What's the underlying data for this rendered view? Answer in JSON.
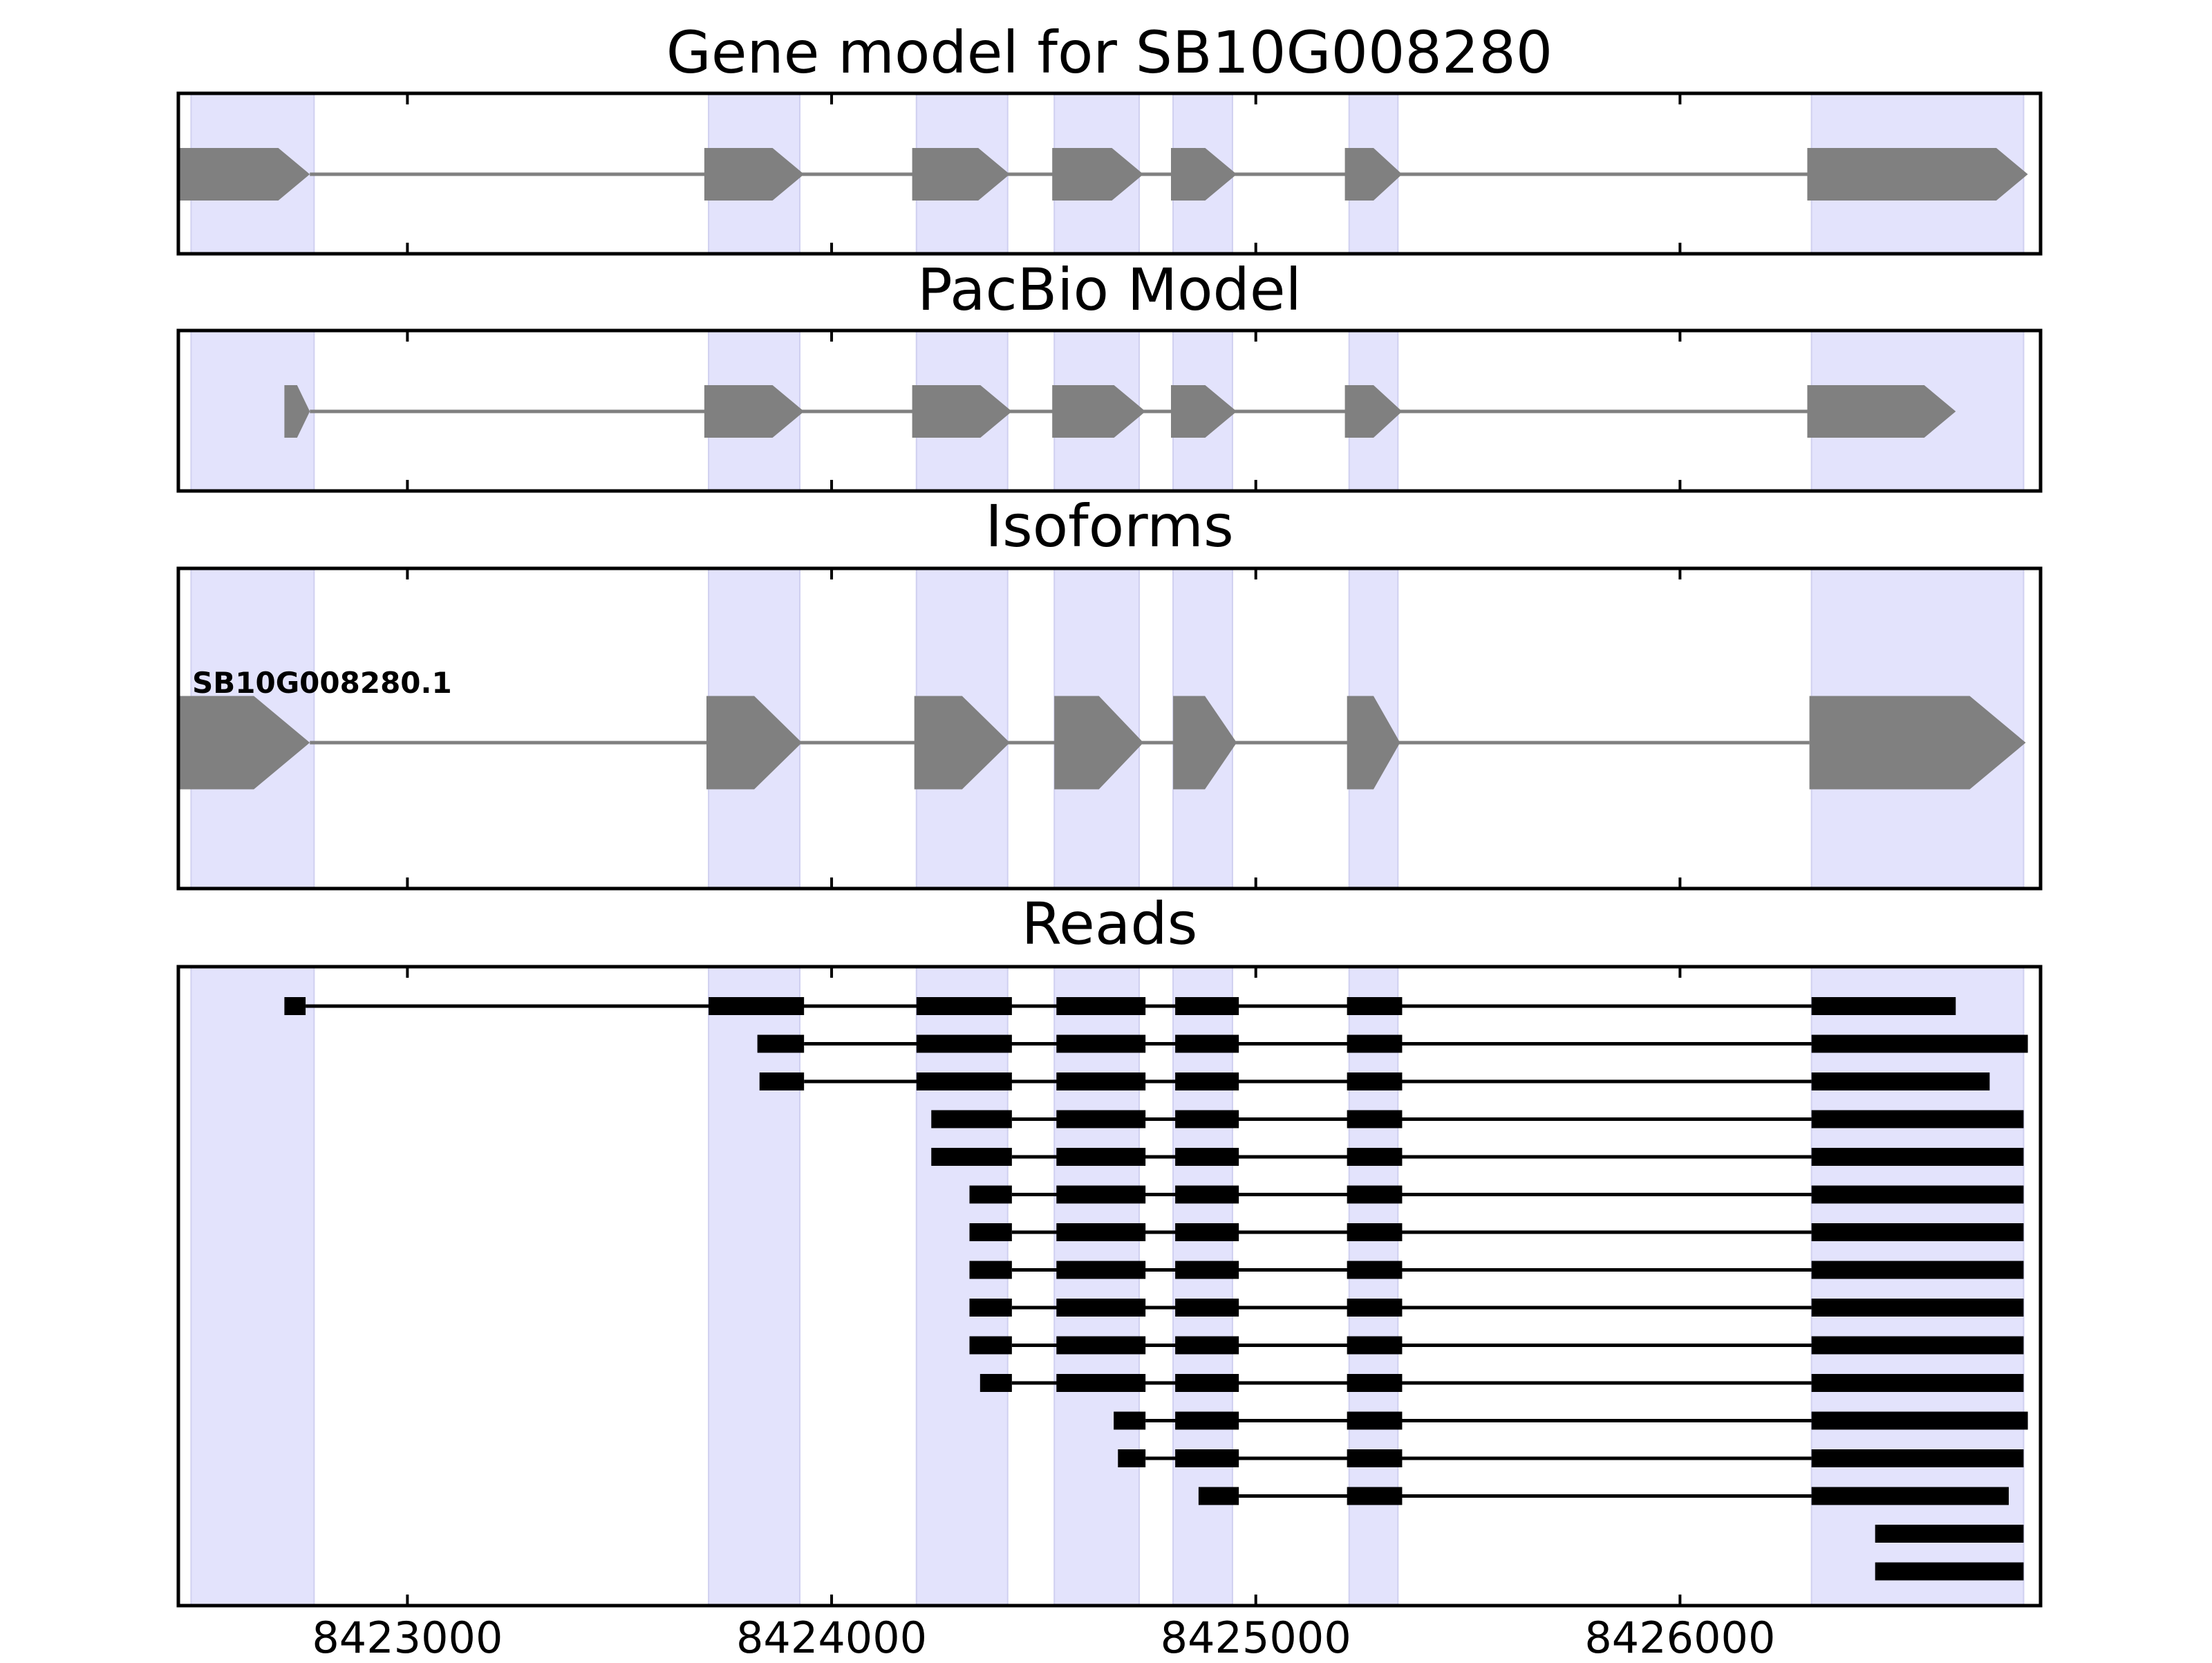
{
  "chart_data": {
    "type": "gene-track",
    "xlim": [
      8422460,
      8426850
    ],
    "x_ticks": [
      8423000,
      8424000,
      8425000,
      8426000
    ],
    "x_tick_labels": [
      "8423000",
      "8424000",
      "8425000",
      "8426000"
    ],
    "highlight_color": "#e3e3fc",
    "feature_color": "#808080",
    "read_color": "#000000",
    "exon_regions": [
      [
        8422490,
        8422780
      ],
      [
        8423710,
        8423925
      ],
      [
        8424200,
        8424415
      ],
      [
        8424525,
        8424725
      ],
      [
        8424805,
        8424945
      ],
      [
        8425220,
        8425335
      ],
      [
        8426310,
        8426810
      ]
    ],
    "panels": [
      {
        "title": "Gene model for SB10G008280",
        "kind": "model",
        "exons": [
          [
            8422460,
            8422770
          ],
          [
            8423700,
            8423935
          ],
          [
            8424190,
            8424420
          ],
          [
            8424520,
            8424735
          ],
          [
            8424800,
            8424955
          ],
          [
            8425210,
            8425345
          ],
          [
            8426300,
            8426820
          ]
        ]
      },
      {
        "title": "PacBio Model",
        "kind": "model",
        "exons": [
          [
            8422710,
            8422770
          ],
          [
            8423700,
            8423935
          ],
          [
            8424190,
            8424425
          ],
          [
            8424520,
            8424740
          ],
          [
            8424800,
            8424955
          ],
          [
            8425210,
            8425345
          ],
          [
            8426300,
            8426650
          ]
        ]
      },
      {
        "title": "Isoforms",
        "kind": "isoforms",
        "isoforms": [
          {
            "name": "SB10G008280.1",
            "exons": [
              [
                8422460,
                8422770
              ],
              [
                8423705,
                8423930
              ],
              [
                8424195,
                8424420
              ],
              [
                8424525,
                8424735
              ],
              [
                8424805,
                8424955
              ],
              [
                8425215,
                8425340
              ],
              [
                8426305,
                8426815
              ]
            ]
          }
        ]
      },
      {
        "title": "Reads",
        "kind": "reads",
        "reads": [
          [
            [
              8422710,
              8422760
            ],
            [
              8423710,
              8423935
            ],
            [
              8424200,
              8424425
            ],
            [
              8424530,
              8424740
            ],
            [
              8424810,
              8424960
            ],
            [
              8425215,
              8425345
            ],
            [
              8426310,
              8426650
            ]
          ],
          [
            [
              8423825,
              8423935
            ],
            [
              8424200,
              8424425
            ],
            [
              8424530,
              8424740
            ],
            [
              8424810,
              8424960
            ],
            [
              8425215,
              8425345
            ],
            [
              8426310,
              8426820
            ]
          ],
          [
            [
              8423830,
              8423935
            ],
            [
              8424200,
              8424425
            ],
            [
              8424530,
              8424740
            ],
            [
              8424810,
              8424960
            ],
            [
              8425215,
              8425345
            ],
            [
              8426310,
              8426730
            ]
          ],
          [
            [
              8424235,
              8424425
            ],
            [
              8424530,
              8424740
            ],
            [
              8424810,
              8424960
            ],
            [
              8425215,
              8425345
            ],
            [
              8426310,
              8426810
            ]
          ],
          [
            [
              8424235,
              8424425
            ],
            [
              8424530,
              8424740
            ],
            [
              8424810,
              8424960
            ],
            [
              8425215,
              8425345
            ],
            [
              8426310,
              8426810
            ]
          ],
          [
            [
              8424325,
              8424425
            ],
            [
              8424530,
              8424740
            ],
            [
              8424810,
              8424960
            ],
            [
              8425215,
              8425345
            ],
            [
              8426310,
              8426810
            ]
          ],
          [
            [
              8424325,
              8424425
            ],
            [
              8424530,
              8424740
            ],
            [
              8424810,
              8424960
            ],
            [
              8425215,
              8425345
            ],
            [
              8426310,
              8426810
            ]
          ],
          [
            [
              8424325,
              8424425
            ],
            [
              8424530,
              8424740
            ],
            [
              8424810,
              8424960
            ],
            [
              8425215,
              8425345
            ],
            [
              8426310,
              8426810
            ]
          ],
          [
            [
              8424325,
              8424425
            ],
            [
              8424530,
              8424740
            ],
            [
              8424810,
              8424960
            ],
            [
              8425215,
              8425345
            ],
            [
              8426310,
              8426810
            ]
          ],
          [
            [
              8424325,
              8424425
            ],
            [
              8424530,
              8424740
            ],
            [
              8424810,
              8424960
            ],
            [
              8425215,
              8425345
            ],
            [
              8426310,
              8426810
            ]
          ],
          [
            [
              8424350,
              8424425
            ],
            [
              8424530,
              8424740
            ],
            [
              8424810,
              8424960
            ],
            [
              8425215,
              8425345
            ],
            [
              8426310,
              8426810
            ]
          ],
          [
            [
              8424665,
              8424740
            ],
            [
              8424810,
              8424960
            ],
            [
              8425215,
              8425345
            ],
            [
              8426310,
              8426820
            ]
          ],
          [
            [
              8424675,
              8424740
            ],
            [
              8424810,
              8424960
            ],
            [
              8425215,
              8425345
            ],
            [
              8426310,
              8426810
            ]
          ],
          [
            [
              8424865,
              8424960
            ],
            [
              8425215,
              8425345
            ],
            [
              8426310,
              8426775
            ]
          ],
          [
            [
              8426460,
              8426810
            ]
          ],
          [
            [
              8426460,
              8426810
            ]
          ]
        ]
      }
    ]
  }
}
